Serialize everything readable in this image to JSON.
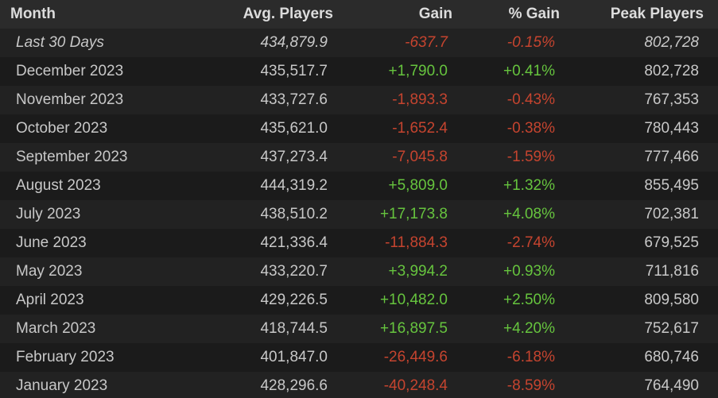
{
  "table": {
    "header": [
      "Month",
      "Avg. Players",
      "Gain",
      "% Gain",
      "Peak Players"
    ],
    "rows": [
      [
        "Last 30 Days",
        "434,879.9",
        "-637.7",
        "-0.15%",
        "802,728"
      ],
      [
        "December 2023",
        "435,517.7",
        "+1,790.0",
        "+0.41%",
        "802,728"
      ],
      [
        "November 2023",
        "433,727.6",
        "-1,893.3",
        "-0.43%",
        "767,353"
      ],
      [
        "October 2023",
        "435,621.0",
        "-1,652.4",
        "-0.38%",
        "780,443"
      ],
      [
        "September 2023",
        "437,273.4",
        "-7,045.8",
        "-1.59%",
        "777,466"
      ],
      [
        "August 2023",
        "444,319.2",
        "+5,809.0",
        "+1.32%",
        "855,495"
      ],
      [
        "July 2023",
        "438,510.2",
        "+17,173.8",
        "+4.08%",
        "702,381"
      ],
      [
        "June 2023",
        "421,336.4",
        "-11,884.3",
        "-2.74%",
        "679,525"
      ],
      [
        "May 2023",
        "433,220.7",
        "+3,994.2",
        "+0.93%",
        "711,816"
      ],
      [
        "April 2023",
        "429,226.5",
        "+10,482.0",
        "+2.50%",
        "809,580"
      ],
      [
        "March 2023",
        "418,744.5",
        "+16,897.5",
        "+4.20%",
        "752,617"
      ],
      [
        "February 2023",
        "401,847.0",
        "-26,449.6",
        "-6.18%",
        "680,746"
      ],
      [
        "January 2023",
        "428,296.6",
        "-40,248.4",
        "-8.59%",
        "764,490"
      ]
    ]
  }
}
